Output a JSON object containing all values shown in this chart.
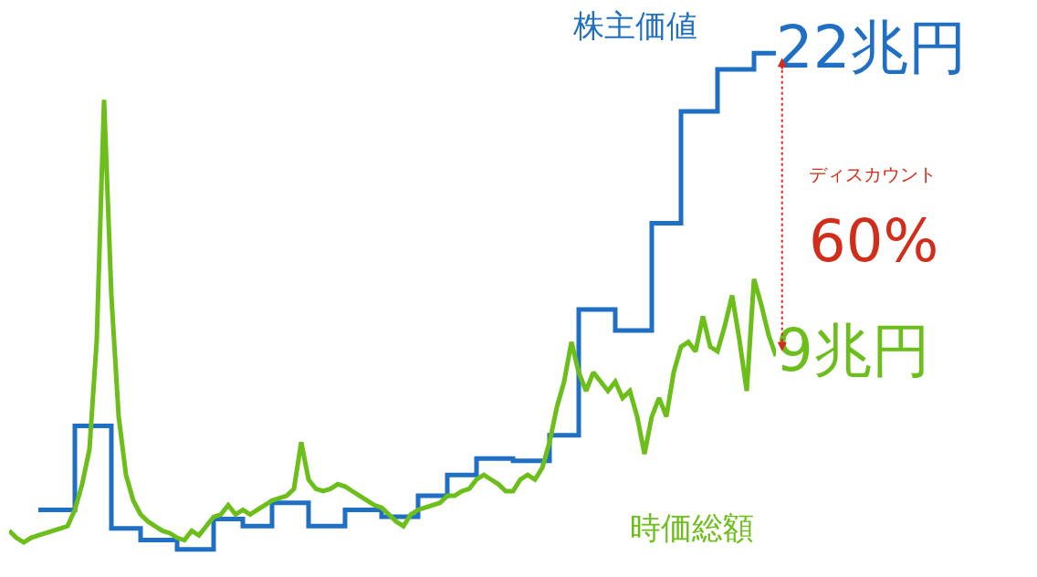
{
  "chart_data": {
    "type": "line",
    "categories": [
      null,
      null,
      null,
      null,
      null,
      null,
      null,
      null,
      null,
      null,
      null,
      null,
      null,
      null,
      null,
      null,
      null,
      null,
      null,
      null,
      null,
      null,
      null,
      null,
      null,
      null,
      null,
      null,
      null,
      null,
      null,
      null,
      null,
      null,
      null,
      null,
      null,
      null,
      null,
      null,
      null,
      null,
      null,
      null,
      null,
      null,
      null,
      null,
      null,
      null,
      null,
      null,
      null,
      null,
      null,
      null,
      null,
      null,
      null,
      null,
      null,
      null,
      null,
      null,
      null,
      null,
      null,
      null,
      null,
      null,
      null,
      null,
      null,
      null,
      null,
      null,
      null,
      null,
      null,
      null,
      null,
      null,
      null,
      null,
      null,
      null,
      null,
      null,
      null,
      null,
      null,
      null,
      null,
      null,
      null,
      null,
      null,
      null,
      null,
      null,
      null,
      null,
      null,
      null,
      null,
      null
    ],
    "series": [
      {
        "name": "株主価値",
        "type": "step",
        "color": "#1f6fc4",
        "values": [
          null,
          null,
          null,
          null,
          2.4,
          2.4,
          2.4,
          2.4,
          2.4,
          6.0,
          6.0,
          6.0,
          6.0,
          6.0,
          1.6,
          1.6,
          1.6,
          1.6,
          1.1,
          1.1,
          1.1,
          1.1,
          1.1,
          0.7,
          0.7,
          0.7,
          0.7,
          0.7,
          2.0,
          2.0,
          2.0,
          2.0,
          1.7,
          1.7,
          1.7,
          1.7,
          2.7,
          2.7,
          2.7,
          2.7,
          2.7,
          1.7,
          1.7,
          1.7,
          1.7,
          1.7,
          2.4,
          2.4,
          2.4,
          2.4,
          2.4,
          2.1,
          2.1,
          2.1,
          2.1,
          2.1,
          3.0,
          3.0,
          3.0,
          3.0,
          3.9,
          3.9,
          3.9,
          3.9,
          4.6,
          4.6,
          4.6,
          4.6,
          4.6,
          4.5,
          4.5,
          4.5,
          4.5,
          4.5,
          5.6,
          5.6,
          5.6,
          5.6,
          11.0,
          11.0,
          11.0,
          11.0,
          11.0,
          10.1,
          10.1,
          10.1,
          10.1,
          10.1,
          14.7,
          14.7,
          14.7,
          14.7,
          19.5,
          19.5,
          19.5,
          19.5,
          19.5,
          21.3,
          21.3,
          21.3,
          21.3,
          21.3,
          22,
          22,
          22,
          22
        ],
        "value_labels": [
          null,
          null,
          null,
          null,
          null,
          null,
          null,
          null,
          null,
          null,
          null,
          null,
          null,
          null,
          null,
          null,
          null,
          null,
          null,
          null,
          null,
          null,
          null,
          null,
          null,
          null,
          null,
          null,
          null,
          null,
          null,
          null,
          null,
          null,
          null,
          null,
          null,
          null,
          null,
          null,
          null,
          null,
          null,
          null,
          null,
          null,
          null,
          null,
          null,
          null,
          null,
          null,
          null,
          null,
          null,
          null,
          null,
          null,
          null,
          null,
          null,
          null,
          null,
          null,
          null,
          null,
          null,
          null,
          null,
          null,
          null,
          null,
          null,
          null,
          null,
          null,
          null,
          null,
          null,
          null,
          null,
          null,
          null,
          null,
          null,
          null,
          null,
          null,
          null,
          null,
          null,
          null,
          null,
          null,
          null,
          null,
          null,
          null,
          null,
          null,
          null,
          null,
          null,
          null,
          null,
          "22兆円"
        ]
      },
      {
        "name": "時価総額",
        "color": "#6cbf1a",
        "values": [
          1.5,
          1.2,
          1.0,
          1.2,
          1.3,
          1.4,
          1.5,
          1.6,
          1.7,
          2.4,
          3.5,
          5.0,
          9.7,
          20.0,
          11.6,
          6.4,
          3.9,
          2.8,
          2.2,
          1.9,
          1.7,
          1.5,
          1.4,
          1.2,
          1.1,
          1.5,
          1.3,
          1.7,
          2.1,
          2.2,
          2.6,
          2.2,
          2.4,
          2.2,
          2.4,
          2.6,
          2.8,
          2.9,
          3.0,
          3.3,
          5.3,
          3.7,
          3.3,
          3.2,
          3.3,
          3.5,
          3.4,
          3.2,
          3.0,
          2.8,
          2.6,
          2.5,
          2.2,
          1.9,
          1.7,
          2.2,
          2.4,
          2.5,
          2.6,
          2.7,
          3.0,
          3.0,
          3.2,
          3.3,
          3.7,
          3.9,
          3.7,
          3.5,
          3.2,
          3.2,
          3.7,
          3.9,
          3.7,
          4.2,
          5.3,
          6.8,
          7.9,
          9.6,
          8.3,
          7.5,
          8.3,
          7.9,
          7.5,
          7.9,
          7.2,
          7.5,
          6.4,
          4.8,
          6.4,
          7.2,
          6.4,
          8.3,
          9.4,
          9.6,
          9.2,
          10.7,
          9.4,
          9.2,
          10.3,
          11.6,
          9.7,
          7.5,
          12.3,
          11.2,
          9.9,
          9.0
        ],
        "value_labels": [
          null,
          null,
          null,
          null,
          null,
          null,
          null,
          null,
          null,
          null,
          null,
          null,
          null,
          null,
          null,
          null,
          null,
          null,
          null,
          null,
          null,
          null,
          null,
          null,
          null,
          null,
          null,
          null,
          null,
          null,
          null,
          null,
          null,
          null,
          null,
          null,
          null,
          null,
          null,
          null,
          null,
          null,
          null,
          null,
          null,
          null,
          null,
          null,
          null,
          null,
          null,
          null,
          null,
          null,
          null,
          null,
          null,
          null,
          null,
          null,
          null,
          null,
          null,
          null,
          null,
          null,
          null,
          null,
          null,
          null,
          null,
          null,
          null,
          null,
          null,
          null,
          null,
          null,
          null,
          null,
          null,
          null,
          null,
          null,
          null,
          null,
          null,
          null,
          null,
          null,
          null,
          null,
          null,
          null,
          null,
          null,
          null,
          null,
          null,
          null,
          null,
          null,
          null,
          null,
          null,
          "9兆円"
        ]
      }
    ],
    "tick_labels": false,
    "legend": false,
    "annotations": [
      "ディスカウント",
      "60%"
    ]
  }
}
